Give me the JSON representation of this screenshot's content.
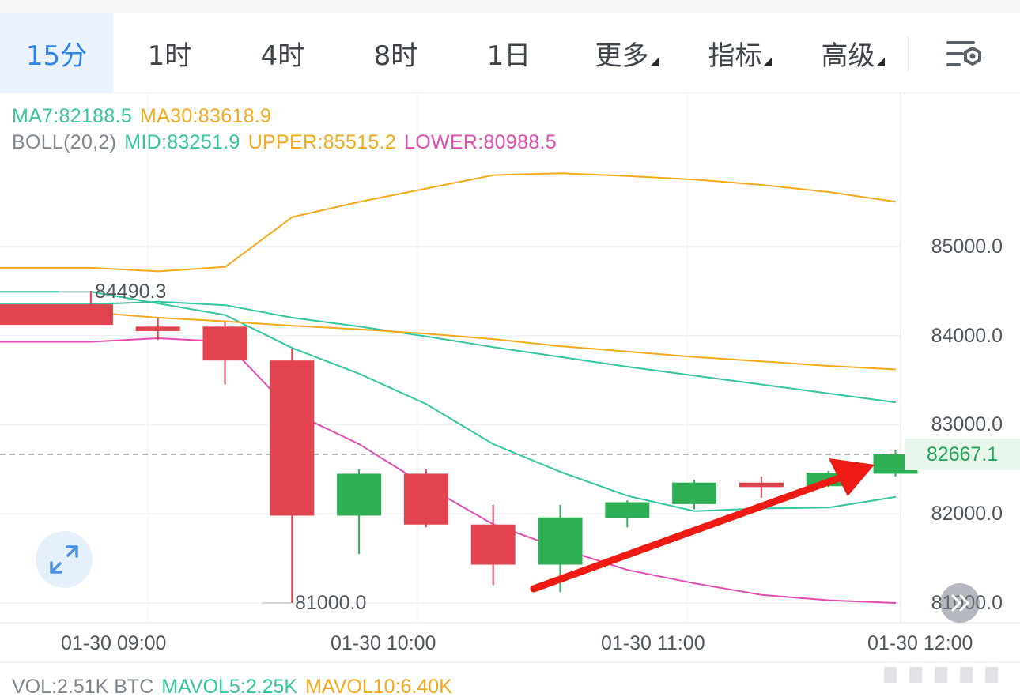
{
  "tabs": [
    {
      "label": "15分",
      "active": true
    },
    {
      "label": "1时",
      "active": false
    },
    {
      "label": "4时",
      "active": false
    },
    {
      "label": "8时",
      "active": false
    },
    {
      "label": "1日",
      "active": false
    },
    {
      "label": "更多",
      "active": false,
      "dropdown": true
    },
    {
      "label": "指标",
      "active": false,
      "dropdown": true
    },
    {
      "label": "高级",
      "active": false,
      "dropdown": true
    }
  ],
  "settings_icon": "chart-settings-icon",
  "legend": {
    "ma7": "MA7:82188.5",
    "ma30": "MA30:83618.9",
    "boll": "BOLL(20,2)",
    "mid": "MID:83251.9",
    "upper": "UPPER:85515.2",
    "lower": "LOWER:80988.5"
  },
  "price_axis": [
    "85000.0",
    "84000.0",
    "83000.0",
    "82000.0",
    "81000.0"
  ],
  "current_price": "82667.1",
  "high_label": "84490.3",
  "low_label": "81000.0",
  "time_axis": [
    "01-30 09:00",
    "01-30 10:00",
    "01-30 11:00",
    "01-30 12:00"
  ],
  "volume": {
    "vol": "VOL:2.51K BTC",
    "mavol5": "MAVOL5:2.25K",
    "mavol10": "MAVOL10:6.40K"
  },
  "colors": {
    "up": "#2eaf55",
    "down": "#e2434f",
    "ma7": "#34c5a1",
    "ma30": "#f3a91c",
    "boll_upper": "#f3a91c",
    "boll_mid": "#34c5a1",
    "boll_lower": "#e24db0",
    "accent": "#2f86e6",
    "annotation_arrow": "#ef1a14"
  },
  "chart_data": {
    "type": "candlestick",
    "title": "",
    "ylim": [
      80780,
      86900
    ],
    "time_labels": [
      "01-30 09:00",
      "01-30 10:00",
      "01-30 11:00",
      "01-30 12:00"
    ],
    "candles": [
      {
        "open": 84350,
        "high": 84500,
        "low": 84150,
        "close": 84120
      },
      {
        "open": 84100,
        "high": 84200,
        "low": 83950,
        "close": 84050
      },
      {
        "open": 84100,
        "high": 84150,
        "low": 83450,
        "close": 83720
      },
      {
        "open": 83720,
        "high": 83850,
        "low": 81000,
        "close": 81980
      },
      {
        "open": 81980,
        "high": 82500,
        "low": 81550,
        "close": 82450
      },
      {
        "open": 82450,
        "high": 82500,
        "low": 81850,
        "close": 81880
      },
      {
        "open": 81880,
        "high": 82100,
        "low": 81200,
        "close": 81430
      },
      {
        "open": 81430,
        "high": 82100,
        "low": 81120,
        "close": 81960
      },
      {
        "open": 81950,
        "high": 82150,
        "low": 81850,
        "close": 82130
      },
      {
        "open": 82110,
        "high": 82380,
        "low": 82050,
        "close": 82350
      },
      {
        "open": 82350,
        "high": 82420,
        "low": 82180,
        "close": 82300
      },
      {
        "open": 82310,
        "high": 82480,
        "low": 82300,
        "close": 82460
      },
      {
        "open": 82450,
        "high": 82720,
        "low": 82420,
        "close": 82667
      }
    ],
    "series": [
      {
        "name": "UPPER",
        "values": [
          84760,
          84720,
          84770,
          85330,
          85500,
          85650,
          85800,
          85820,
          85790,
          85750,
          85690,
          85610,
          85500
        ]
      },
      {
        "name": "MID",
        "values": [
          84350,
          84380,
          84340,
          84200,
          84100,
          83990,
          83870,
          83760,
          83650,
          83550,
          83450,
          83350,
          83250
        ]
      },
      {
        "name": "LOWER",
        "values": [
          83930,
          83970,
          83930,
          83140,
          82780,
          82310,
          81880,
          81610,
          81370,
          81220,
          81090,
          81030,
          81000
        ]
      },
      {
        "name": "MA7",
        "values": [
          84490,
          84360,
          84230,
          83860,
          83570,
          83230,
          82780,
          82470,
          82200,
          82030,
          82060,
          82070,
          82190
        ]
      },
      {
        "name": "MA30",
        "values": [
          84260,
          84200,
          84160,
          84110,
          84070,
          84020,
          83960,
          83880,
          83820,
          83760,
          83710,
          83660,
          83620
        ]
      }
    ]
  }
}
